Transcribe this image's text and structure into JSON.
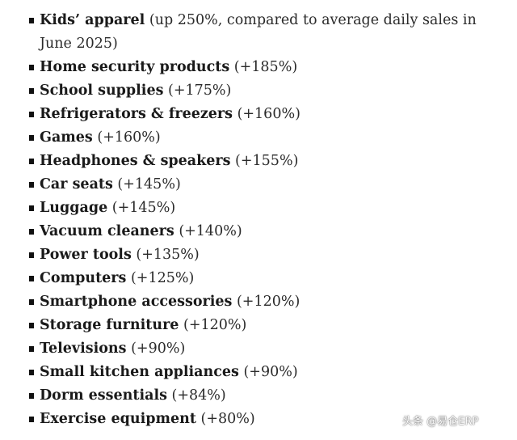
{
  "items": [
    {
      "name": "Kids’ apparel",
      "detail": "(up 250%, compared to average daily sales in June 2025)"
    },
    {
      "name": "Home security products",
      "detail": "(+185%)"
    },
    {
      "name": "School supplies",
      "detail": "(+175%)"
    },
    {
      "name": "Refrigerators & freezers",
      "detail": "(+160%)"
    },
    {
      "name": "Games",
      "detail": "(+160%)"
    },
    {
      "name": "Headphones & speakers",
      "detail": "(+155%)"
    },
    {
      "name": "Car seats",
      "detail": "(+145%)"
    },
    {
      "name": "Luggage",
      "detail": "(+145%)"
    },
    {
      "name": "Vacuum cleaners",
      "detail": "(+140%)"
    },
    {
      "name": "Power tools",
      "detail": "(+135%)"
    },
    {
      "name": "Computers",
      "detail": "(+125%)"
    },
    {
      "name": "Smartphone accessories",
      "detail": "(+120%)"
    },
    {
      "name": "Storage furniture",
      "detail": "(+120%)"
    },
    {
      "name": "Televisions",
      "detail": "(+90%)"
    },
    {
      "name": "Small kitchen appliances",
      "detail": "(+90%)"
    },
    {
      "name": "Dorm essentials",
      "detail": "(+84%)"
    },
    {
      "name": "Exercise equipment",
      "detail": "(+80%)"
    }
  ],
  "watermark": "头条 @易仓ERP"
}
